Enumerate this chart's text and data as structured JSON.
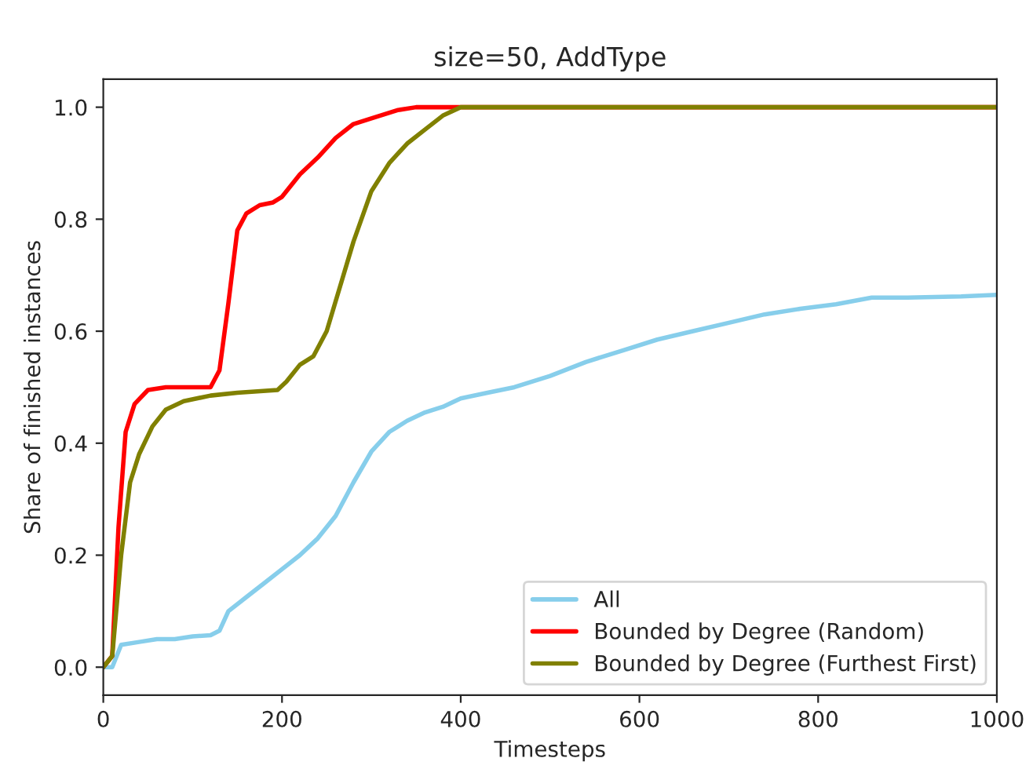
{
  "chart_data": {
    "type": "line",
    "title": "size=50, AddType",
    "xlabel": "Timesteps",
    "ylabel": "Share of finished instances",
    "xlim": [
      0,
      1000
    ],
    "xticks": [
      0,
      200,
      400,
      600,
      800,
      1000
    ],
    "ylim": [
      -0.05,
      1.05
    ],
    "yticks": [
      {
        "value": 0,
        "label": "0.0"
      },
      {
        "value": 0.2,
        "label": "0.2"
      },
      {
        "value": 0.4,
        "label": "0.4"
      },
      {
        "value": 0.6,
        "label": "0.6"
      },
      {
        "value": 0.8,
        "label": "0.8"
      },
      {
        "value": 1,
        "label": "1.0"
      }
    ],
    "grid": false,
    "legend": "bottom right",
    "marker": "none",
    "line_style": "solid",
    "series": [
      {
        "name": "All",
        "color": "#87ceeb",
        "x": [
          0,
          10,
          20,
          40,
          60,
          80,
          100,
          120,
          130,
          140,
          160,
          180,
          200,
          220,
          240,
          260,
          280,
          300,
          320,
          340,
          360,
          380,
          400,
          430,
          460,
          500,
          540,
          580,
          620,
          660,
          700,
          740,
          780,
          820,
          860,
          900,
          960,
          1000
        ],
        "values": [
          0,
          0,
          0.04,
          0.045,
          0.05,
          0.05,
          0.055,
          0.057,
          0.065,
          0.1,
          0.125,
          0.15,
          0.175,
          0.2,
          0.23,
          0.27,
          0.33,
          0.385,
          0.42,
          0.44,
          0.455,
          0.465,
          0.48,
          0.49,
          0.5,
          0.52,
          0.545,
          0.565,
          0.585,
          0.6,
          0.615,
          0.63,
          0.64,
          0.648,
          0.66,
          0.66,
          0.662,
          0.665
        ]
      },
      {
        "name": "Bounded by Degree (Random)",
        "color": "#ff0000",
        "x": [
          0,
          10,
          17,
          25,
          35,
          50,
          70,
          120,
          130,
          140,
          150,
          160,
          175,
          190,
          200,
          220,
          240,
          260,
          280,
          300,
          330,
          350,
          1000
        ],
        "values": [
          0,
          0.02,
          0.25,
          0.42,
          0.47,
          0.495,
          0.5,
          0.5,
          0.53,
          0.65,
          0.78,
          0.81,
          0.825,
          0.83,
          0.84,
          0.88,
          0.91,
          0.945,
          0.97,
          0.98,
          0.995,
          1.0,
          1.0
        ]
      },
      {
        "name": "Bounded by Degree (Furthest First)",
        "color": "#808000",
        "x": [
          0,
          10,
          20,
          30,
          40,
          55,
          70,
          90,
          120,
          150,
          195,
          205,
          220,
          235,
          250,
          265,
          280,
          300,
          320,
          340,
          360,
          380,
          400,
          1000
        ],
        "values": [
          0,
          0.02,
          0.2,
          0.33,
          0.38,
          0.43,
          0.46,
          0.475,
          0.485,
          0.49,
          0.495,
          0.51,
          0.54,
          0.555,
          0.6,
          0.68,
          0.76,
          0.85,
          0.9,
          0.935,
          0.96,
          0.985,
          1.0,
          1.0
        ]
      }
    ]
  }
}
